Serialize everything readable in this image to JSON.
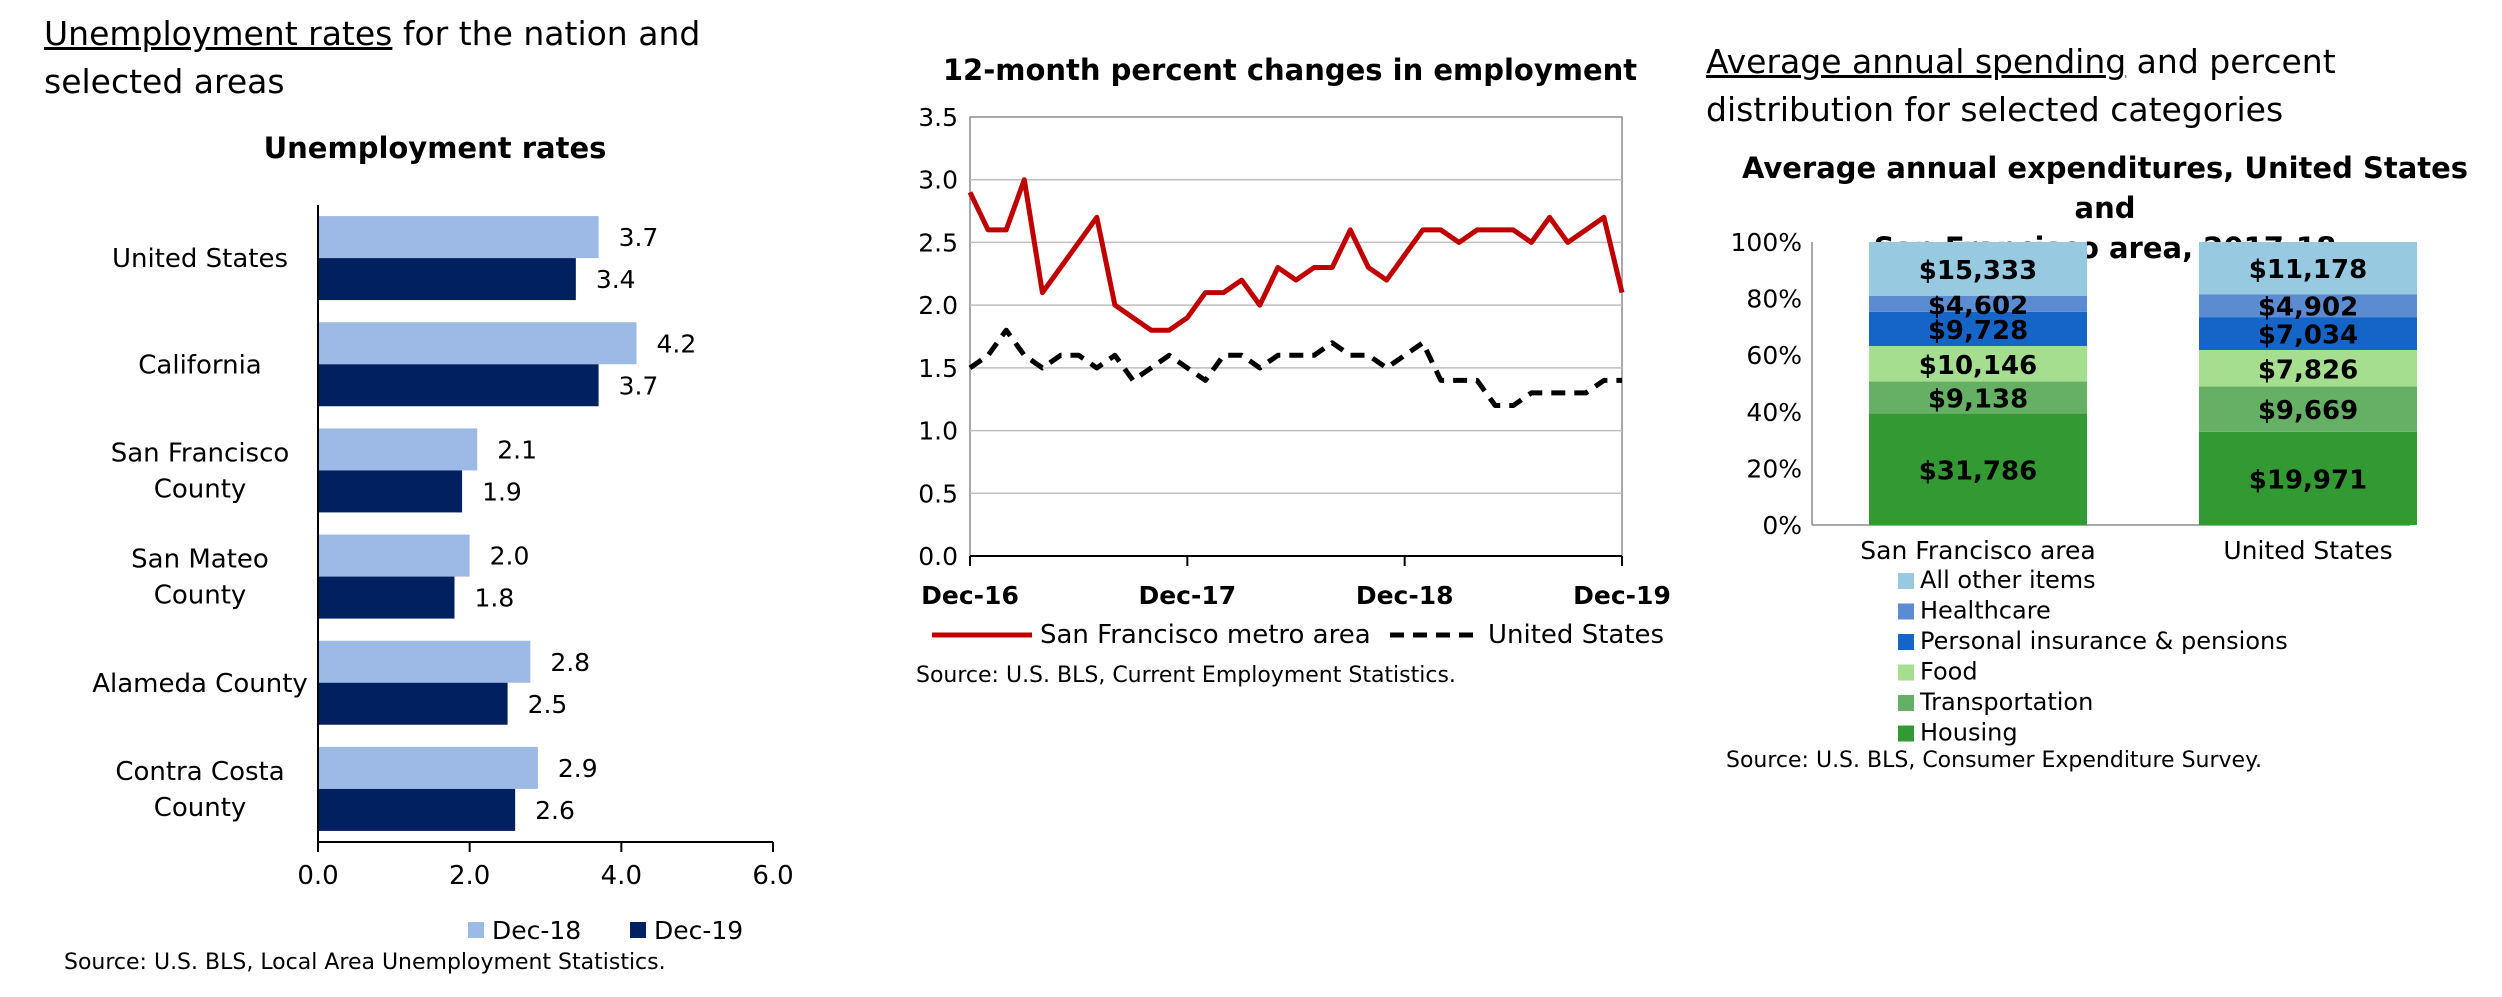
{
  "panels": {
    "unemployment": {
      "heading_link": "Unemployment rates",
      "heading_rest": " for the nation and selected areas",
      "source": "Source: U.S. BLS, Local Area Unemployment Statistics."
    },
    "employment": {
      "source": "Source: U.S. BLS, Current Employment Statistics."
    },
    "spending": {
      "heading_link": "Average annual spending",
      "heading_rest": " and percent distribution for selected categories",
      "source": "Source: U.S. BLS, Consumer Expenditure Survey."
    }
  },
  "chart_data": [
    {
      "type": "bar",
      "orientation": "horizontal",
      "title": "Unemployment rates",
      "categories": [
        [
          "United States"
        ],
        [
          "California"
        ],
        [
          "San Francisco",
          "County"
        ],
        [
          "San Mateo",
          "County"
        ],
        [
          "Alameda County"
        ],
        [
          "Contra Costa",
          "County"
        ]
      ],
      "series": [
        {
          "name": "Dec-18",
          "color": "#9dbae6",
          "values": [
            3.7,
            4.2,
            2.1,
            2.0,
            2.8,
            2.9
          ],
          "labels": [
            "3.7",
            "4.2",
            "2.1",
            "2.0",
            "2.8",
            "2.9"
          ]
        },
        {
          "name": "Dec-19",
          "color": "#002060",
          "values": [
            3.4,
            3.7,
            1.9,
            1.8,
            2.5,
            2.6
          ],
          "labels": [
            "3.4",
            "3.7",
            "1.9",
            "1.8",
            "2.5",
            "2.6"
          ]
        }
      ],
      "xlim": [
        0,
        6
      ],
      "xticks": [
        0,
        2,
        4,
        6
      ],
      "xtick_labels": [
        "0.0",
        "2.0",
        "4.0",
        "6.0"
      ],
      "legend": "bottom-right"
    },
    {
      "type": "line",
      "title": "12-month percent changes in employment",
      "ylim": [
        0,
        3.5
      ],
      "yticks": [
        0,
        0.5,
        1,
        1.5,
        2,
        2.5,
        3,
        3.5
      ],
      "ytick_labels": [
        "0.0",
        "0.5",
        "1.0",
        "1.5",
        "2.0",
        "2.5",
        "3.0",
        "3.5"
      ],
      "xtick_labels": [
        "Dec-16",
        "Dec-17",
        "Dec-18",
        "Dec-19"
      ],
      "grid": true,
      "legend": "bottom",
      "series": [
        {
          "name": "San Francisco metro area",
          "color": "#c00000",
          "style": "solid",
          "values": [
            2.9,
            2.6,
            2.6,
            3.0,
            2.1,
            2.3,
            2.5,
            2.7,
            2.0,
            1.9,
            1.8,
            1.8,
            1.9,
            2.1,
            2.1,
            2.2,
            2.0,
            2.3,
            2.2,
            2.3,
            2.3,
            2.6,
            2.3,
            2.2,
            2.4,
            2.6,
            2.6,
            2.5,
            2.6,
            2.6,
            2.6,
            2.5,
            2.7,
            2.5,
            2.6,
            2.7,
            2.1
          ]
        },
        {
          "name": "United States",
          "color": "#000000",
          "style": "dashed",
          "values": [
            1.5,
            1.6,
            1.8,
            1.6,
            1.5,
            1.6,
            1.6,
            1.5,
            1.6,
            1.4,
            1.5,
            1.6,
            1.5,
            1.4,
            1.6,
            1.6,
            1.5,
            1.6,
            1.6,
            1.6,
            1.7,
            1.6,
            1.6,
            1.5,
            1.6,
            1.7,
            1.4,
            1.4,
            1.4,
            1.2,
            1.2,
            1.3,
            1.3,
            1.3,
            1.3,
            1.4,
            1.4
          ]
        }
      ]
    },
    {
      "type": "bar",
      "stacked": true,
      "normalized": true,
      "title": "Average annual expenditures, United States and San Francisco area, 2017-18",
      "title_lines": [
        "Average annual expenditures, United States and",
        "San Francisco area, 2017-18"
      ],
      "categories": [
        "San Francisco area",
        "United States"
      ],
      "yticks": [
        0,
        20,
        40,
        60,
        80,
        100
      ],
      "ytick_labels": [
        "0%",
        "20%",
        "40%",
        "60%",
        "80%",
        "100%"
      ],
      "legend": "bottom",
      "series": [
        {
          "name": "Housing",
          "color": "#339933",
          "values": [
            31786,
            19971
          ],
          "labels": [
            "$31,786",
            "$19,971"
          ]
        },
        {
          "name": "Transportation",
          "color": "#66b066",
          "values": [
            9138,
            9669
          ],
          "labels": [
            "$9,138",
            "$9,669"
          ]
        },
        {
          "name": "Food",
          "color": "#a4de8e",
          "values": [
            10146,
            7826
          ],
          "labels": [
            "$10,146",
            "$7,826"
          ]
        },
        {
          "name": "Personal insurance & pensions",
          "color": "#1565c8",
          "values": [
            9728,
            7034
          ],
          "labels": [
            "$9,728",
            "$7,034"
          ]
        },
        {
          "name": "Healthcare",
          "color": "#5b8bd1",
          "values": [
            4602,
            4902
          ],
          "labels": [
            "$4,602",
            "$4,902"
          ]
        },
        {
          "name": "All other items",
          "color": "#97c9e1",
          "values": [
            15333,
            11178
          ],
          "labels": [
            "$15,333",
            "$11,178"
          ]
        }
      ]
    }
  ]
}
